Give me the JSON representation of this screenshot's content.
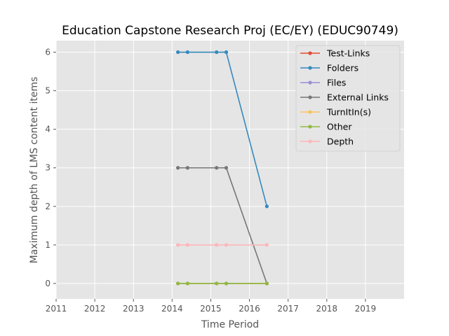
{
  "chart_data": {
    "type": "line",
    "title": "Education Capstone Research Proj (EC/EY) (EDUC90749)",
    "xlabel": "Time Period",
    "ylabel": "Maximum depth of LMS content items",
    "xlim": [
      2011,
      2020
    ],
    "ylim": [
      -0.4,
      6.3
    ],
    "xticks": [
      "2011",
      "2012",
      "2013",
      "2014",
      "2015",
      "2016",
      "2017",
      "2018",
      "2019"
    ],
    "yticks": [
      "0",
      "1",
      "2",
      "3",
      "4",
      "5",
      "6"
    ],
    "grid": true,
    "legend_position": "top-right",
    "x": [
      2014.15,
      2014.4,
      2015.15,
      2015.4,
      2016.45
    ],
    "series": [
      {
        "name": "Test-Links",
        "color": "#E24A33",
        "values": [
          0,
          0,
          0,
          0,
          0
        ]
      },
      {
        "name": "Folders",
        "color": "#348ABD",
        "values": [
          6,
          6,
          6,
          6,
          2
        ]
      },
      {
        "name": "Files",
        "color": "#988ED5",
        "values": [
          0,
          0,
          0,
          0,
          0
        ]
      },
      {
        "name": "External Links",
        "color": "#777777",
        "values": [
          3,
          3,
          3,
          3,
          0
        ]
      },
      {
        "name": "TurnItIn(s)",
        "color": "#FBC15E",
        "values": [
          0,
          0,
          0,
          0,
          0
        ]
      },
      {
        "name": "Other",
        "color": "#8EBA42",
        "values": [
          0,
          0,
          0,
          0,
          0
        ]
      },
      {
        "name": "Depth",
        "color": "#FFB5B8",
        "values": [
          1,
          1,
          1,
          1,
          1
        ]
      }
    ]
  }
}
